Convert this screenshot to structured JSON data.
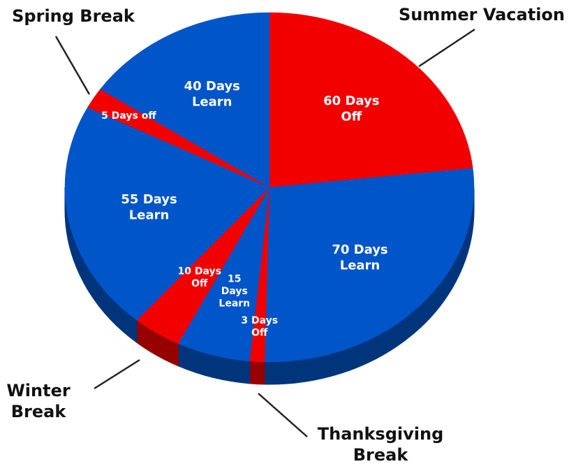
{
  "chart_data": {
    "type": "pie3d",
    "categories": [
      "Summer Vacation",
      "Learn",
      "Thanksgiving Break",
      "Learn",
      "Winter Break",
      "Learn",
      "Spring Break",
      "Learn"
    ],
    "values": [
      60,
      70,
      3,
      15,
      10,
      55,
      5,
      40
    ],
    "value_labels": [
      "60 Days\nOff",
      "70 Days\nLearn",
      "3 Days\nOff",
      "15\nDays\nLearn",
      "10 Days\nOff",
      "55 Days\nLearn",
      "5 Days  off",
      "40 Days\nLearn"
    ],
    "colors": [
      "#f20000",
      "#0055c8",
      "#f20000",
      "#0055c8",
      "#f20000",
      "#0055c8",
      "#f20000",
      "#0055c8"
    ],
    "annotations": [
      "Summer Vacation",
      "Thanksgiving\nBreak",
      "Winter\nBreak",
      "Spring Break"
    ]
  }
}
